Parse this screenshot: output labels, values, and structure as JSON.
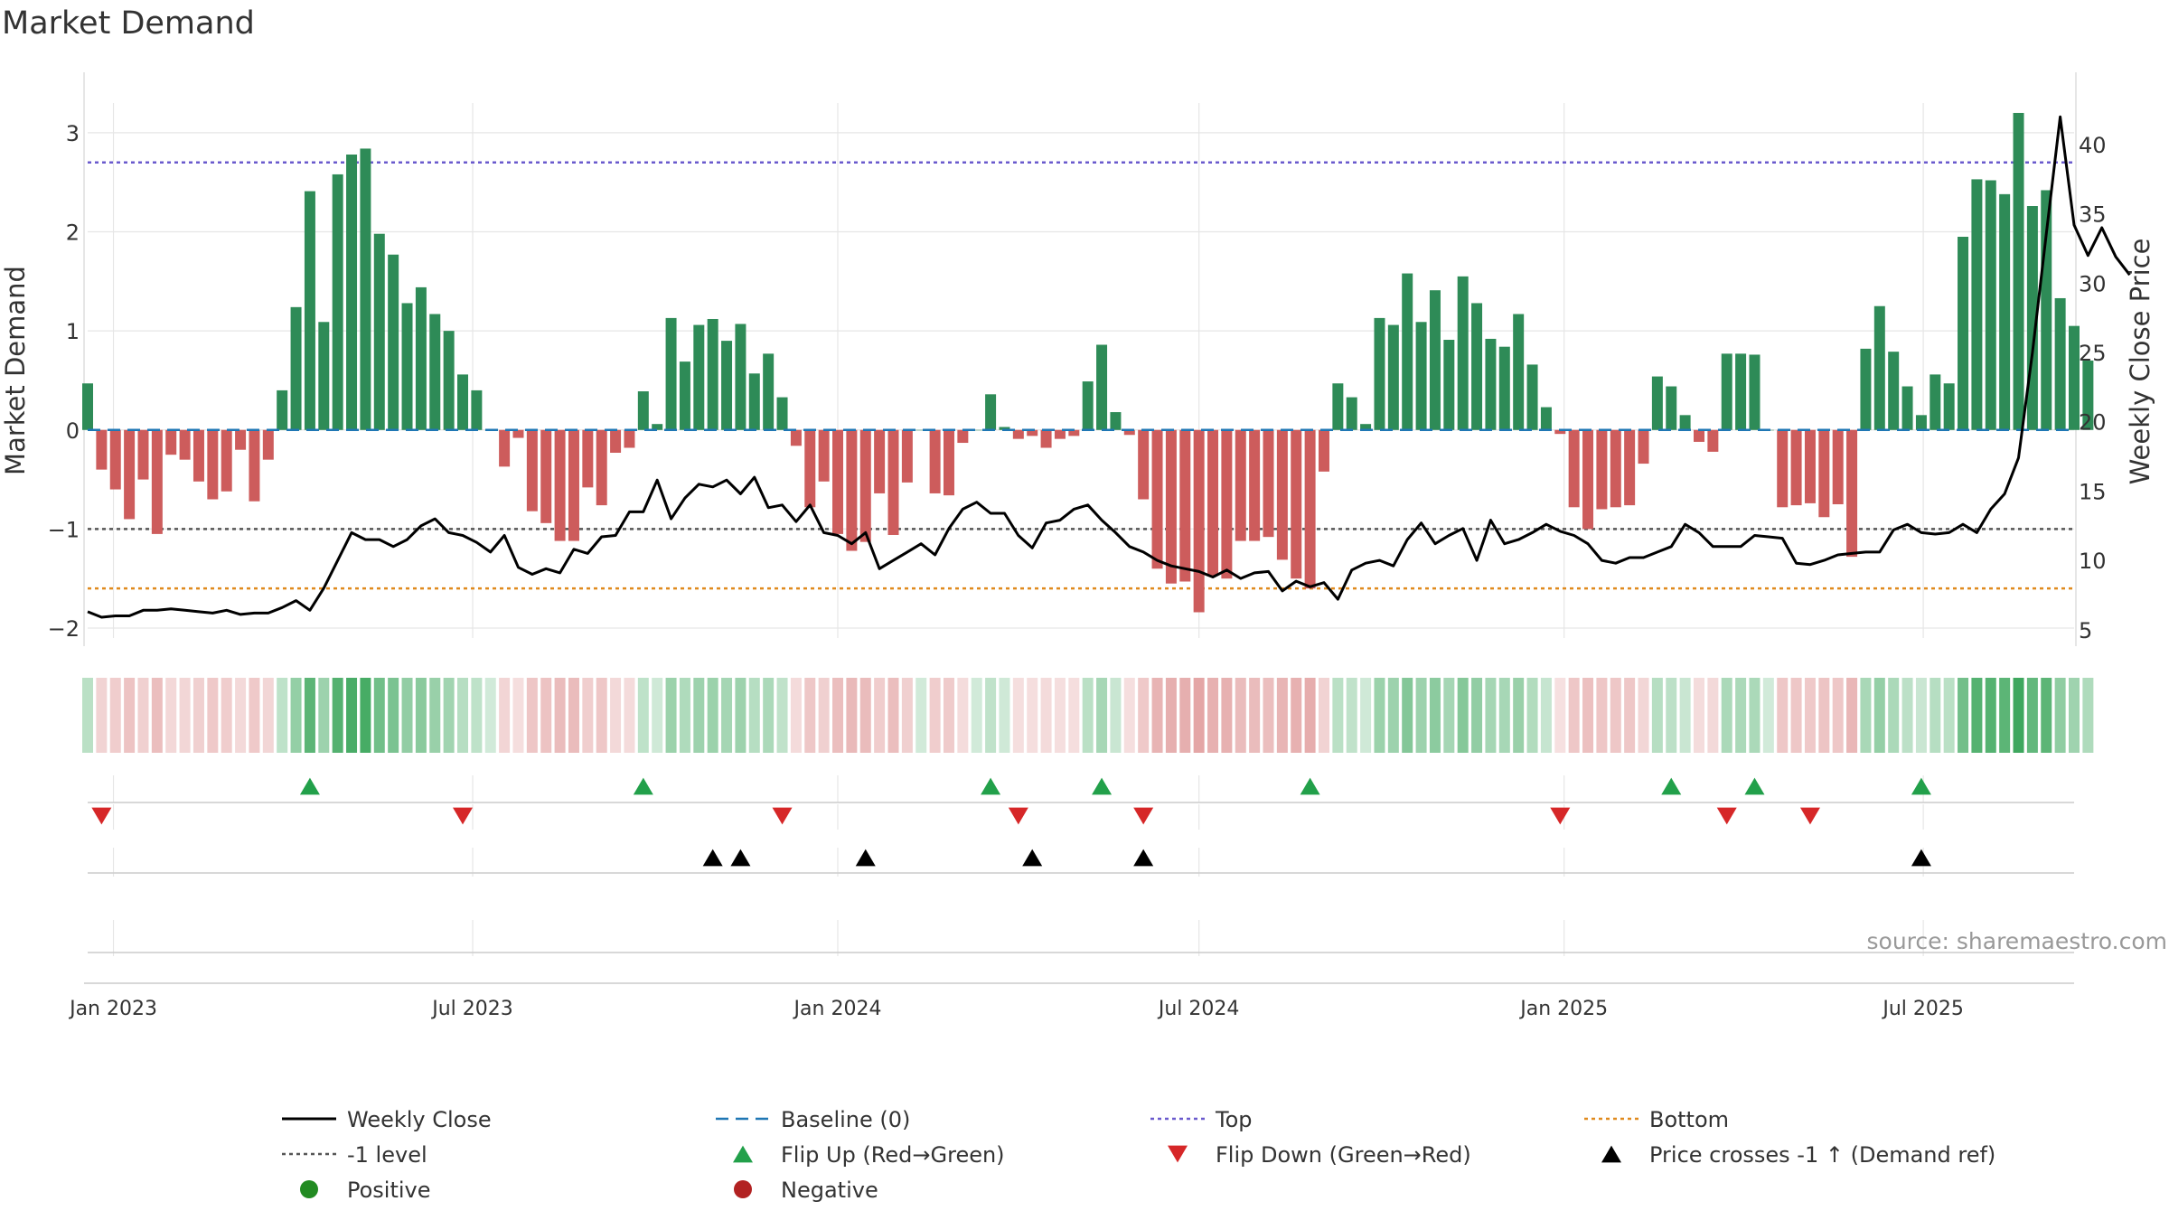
{
  "page": {
    "title": "Market Demand",
    "source": "source: sharemaestro.com"
  },
  "colors": {
    "positive": "#2e8b57",
    "negative": "#cd5c5c",
    "close": "#000000",
    "baseline": "#1f77b4",
    "top": "#6a5acd",
    "minus1": "#555555",
    "bottom": "#e08a1e",
    "flip_up": "#22a04a",
    "flip_down": "#d62728",
    "cross": "#000000",
    "legend_positive": "#228b22",
    "legend_negative": "#b22222",
    "grid": "#e6e6e6"
  },
  "chart_data": {
    "type": "bar",
    "title": "Market Demand",
    "ylabel": "Market Demand",
    "y2label": "Weekly Close Price",
    "ylim": [
      -2.1,
      3.3
    ],
    "y2lim": [
      4.4,
      43.0
    ],
    "yticks": [
      -2,
      -1,
      0,
      1,
      2,
      3
    ],
    "y2ticks": [
      5,
      10,
      15,
      20,
      25,
      30,
      35,
      40
    ],
    "x_start": "2022-12-19",
    "x_end": "2025-09-15",
    "xticks": [
      {
        "date": "2023-01-01",
        "label": "Jan 2023"
      },
      {
        "date": "2023-07-01",
        "label": "Jul 2023"
      },
      {
        "date": "2024-01-01",
        "label": "Jan 2024"
      },
      {
        "date": "2024-07-01",
        "label": "Jul 2024"
      },
      {
        "date": "2025-01-01",
        "label": "Jan 2025"
      },
      {
        "date": "2025-07-01",
        "label": "Jul 2025"
      }
    ],
    "first_week": "2022-12-19",
    "demand": [
      0.47,
      -0.4,
      -0.6,
      -0.9,
      -0.5,
      -1.05,
      -0.25,
      -0.3,
      -0.52,
      -0.7,
      -0.62,
      -0.2,
      -0.72,
      -0.3,
      0.4,
      1.24,
      2.41,
      1.09,
      2.58,
      2.78,
      2.84,
      1.98,
      1.77,
      1.28,
      1.44,
      1.17,
      1.0,
      0.56,
      0.4,
      0.0,
      -0.37,
      -0.08,
      -0.82,
      -0.94,
      -1.12,
      -1.12,
      -0.58,
      -0.76,
      -0.23,
      -0.18,
      0.39,
      0.06,
      1.13,
      0.69,
      1.06,
      1.12,
      0.9,
      1.07,
      0.57,
      0.77,
      0.33,
      -0.16,
      -0.78,
      -0.52,
      -1.05,
      -1.22,
      -1.13,
      -0.64,
      -1.06,
      -0.53,
      0.0,
      -0.64,
      -0.66,
      -0.13,
      0.0,
      0.36,
      0.03,
      -0.09,
      -0.06,
      -0.18,
      -0.09,
      -0.06,
      0.49,
      0.86,
      0.18,
      -0.05,
      -0.7,
      -1.4,
      -1.55,
      -1.53,
      -1.84,
      -1.47,
      -1.5,
      -1.12,
      -1.12,
      -1.08,
      -1.31,
      -1.5,
      -1.6,
      -0.42,
      0.47,
      0.33,
      0.06,
      1.13,
      1.06,
      1.58,
      1.09,
      1.41,
      0.91,
      1.55,
      1.28,
      0.92,
      0.84,
      1.17,
      0.66,
      0.23,
      -0.04,
      -0.78,
      -1.0,
      -0.8,
      -0.78,
      -0.76,
      -0.34,
      0.54,
      0.44,
      0.15,
      -0.12,
      -0.22,
      0.77,
      0.77,
      0.76,
      0.0,
      -0.78,
      -0.76,
      -0.74,
      -0.88,
      -0.75,
      -1.28,
      0.82,
      1.25,
      0.79,
      0.44,
      0.15,
      0.56,
      0.47,
      1.95,
      2.53,
      2.52,
      2.38,
      3.2,
      2.26,
      2.42,
      1.33,
      1.05,
      0.7
    ],
    "close": [
      6.3,
      5.9,
      6.0,
      6.0,
      6.4,
      6.4,
      6.5,
      6.4,
      6.3,
      6.2,
      6.4,
      6.1,
      6.2,
      6.2,
      6.6,
      7.1,
      6.4,
      8.0,
      10.0,
      12.0,
      11.5,
      11.5,
      11.0,
      11.5,
      12.5,
      13.0,
      12.0,
      11.8,
      11.3,
      10.6,
      11.8,
      9.5,
      9.0,
      9.4,
      9.1,
      10.8,
      10.5,
      11.7,
      11.8,
      13.5,
      13.5,
      15.8,
      13.0,
      14.5,
      15.5,
      15.3,
      15.8,
      14.8,
      16.0,
      13.8,
      14.0,
      12.8,
      14.0,
      12.0,
      11.8,
      11.2,
      12.0,
      9.4,
      10.0,
      10.6,
      11.2,
      10.4,
      12.3,
      13.7,
      14.2,
      13.4,
      13.4,
      11.8,
      10.9,
      12.7,
      12.9,
      13.7,
      14.0,
      12.9,
      12.0,
      11.0,
      10.6,
      10.0,
      9.6,
      9.4,
      9.2,
      8.8,
      9.3,
      8.7,
      9.1,
      9.2,
      7.8,
      8.5,
      8.1,
      8.4,
      7.2,
      9.3,
      9.8,
      10.0,
      9.6,
      11.5,
      12.7,
      11.2,
      11.8,
      12.3,
      10.0,
      12.9,
      11.2,
      11.5,
      12.0,
      12.6,
      12.1,
      11.8,
      11.2,
      10.0,
      9.8,
      10.2,
      10.2,
      10.6,
      11.0,
      12.6,
      12.0,
      11.0,
      11.0,
      11.0,
      11.8,
      11.7,
      11.6,
      9.8,
      9.7,
      10.0,
      10.4,
      10.5,
      10.6,
      10.6,
      12.2,
      12.6,
      12.0,
      11.9,
      12.0,
      12.6,
      12.0,
      13.7,
      14.8,
      17.4,
      25.0,
      33.6,
      42.0,
      34.2,
      32.0,
      34.0,
      31.9,
      30.6
    ],
    "flip_up_dates": [
      "2023-04-10",
      "2023-09-25",
      "2024-03-18",
      "2024-05-13",
      "2024-08-26",
      "2025-02-24",
      "2025-04-07",
      "2025-06-30"
    ],
    "flip_down_dates": [
      "2022-12-26",
      "2023-06-26",
      "2023-12-04",
      "2024-04-01",
      "2024-06-03",
      "2024-12-30",
      "2025-03-24",
      "2025-05-05"
    ],
    "cross_dates": [
      "2023-10-30",
      "2023-11-13",
      "2024-01-15",
      "2024-04-08",
      "2024-06-03",
      "2025-06-30"
    ],
    "levels": {
      "top": 2.7,
      "minus1": -1,
      "bottom": -1.6,
      "baseline": 0
    },
    "legend": [
      {
        "label": "Weekly Close",
        "key": "close",
        "kind": "line"
      },
      {
        "label": "Baseline (0)",
        "key": "baseline",
        "kind": "dash"
      },
      {
        "label": "Top",
        "key": "top",
        "kind": "dot"
      },
      {
        "label": "Bottom",
        "key": "bottom",
        "kind": "dot"
      },
      {
        "label": "-1 level",
        "key": "minus1",
        "kind": "dot"
      },
      {
        "label": "Flip Up (Red→Green)",
        "key": "flip_up",
        "kind": "tri-up"
      },
      {
        "label": "Flip Down (Green→Red)",
        "key": "flip_down",
        "kind": "tri-down"
      },
      {
        "label": "Price crosses -1 ↑ (Demand ref)",
        "key": "cross",
        "kind": "tri-up"
      },
      {
        "label": "Positive",
        "key": "legend_positive",
        "kind": "circle"
      },
      {
        "label": "Negative",
        "key": "legend_negative",
        "kind": "circle"
      }
    ]
  }
}
